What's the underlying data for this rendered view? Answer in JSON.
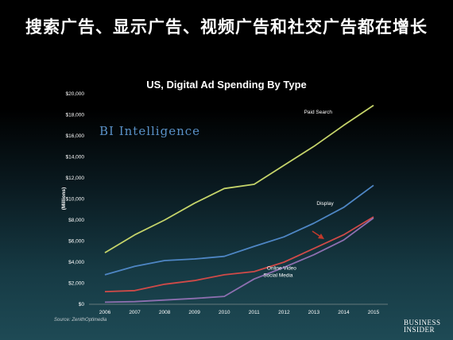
{
  "slide_title": "搜索广告、显示广告、视频广告和社交广告都在增长",
  "brand_label": "BI Intelligence",
  "source": "Source: ZenithOptimedia",
  "logo": {
    "line1": "BUSINESS",
    "line2": "INSIDER"
  },
  "colors": {
    "paid_search": "#c5d46a",
    "display": "#4e86c4",
    "online_video": "#d04a48",
    "social_media": "#8d6fb0",
    "arrow": "#c0392b"
  },
  "chart_data": {
    "type": "line",
    "title": "US, Digital Ad Spending By Type",
    "ylabel": "(Millions)",
    "xlabel": "",
    "ylim": [
      0,
      20000
    ],
    "grid": false,
    "legend": "inline labels",
    "categories": [
      "2006",
      "2007",
      "2008",
      "2009",
      "2010",
      "2011",
      "2012",
      "2013",
      "2014",
      "2015"
    ],
    "yticks": [
      "$0",
      "$2,000",
      "$4,000",
      "$6,000",
      "$8,000",
      "$10,000",
      "$12,000",
      "$14,000",
      "$16,000",
      "$18,000",
      "$20,000"
    ],
    "series": [
      {
        "name": "Paid Search",
        "color_key": "paid_search",
        "values": [
          4900,
          6600,
          8000,
          9600,
          11000,
          11400,
          13200,
          15000,
          17000,
          18900
        ]
      },
      {
        "name": "Display",
        "color_key": "display",
        "values": [
          2800,
          3600,
          4150,
          4300,
          4550,
          5500,
          6400,
          7700,
          9200,
          11300
        ]
      },
      {
        "name": "Online Video",
        "color_key": "online_video",
        "values": [
          1200,
          1300,
          1900,
          2250,
          2800,
          3100,
          4000,
          5300,
          6600,
          8300
        ]
      },
      {
        "name": "Social Media",
        "color_key": "social_media",
        "values": [
          200,
          250,
          400,
          550,
          750,
          2400,
          3500,
          4700,
          6100,
          8200
        ]
      }
    ]
  }
}
